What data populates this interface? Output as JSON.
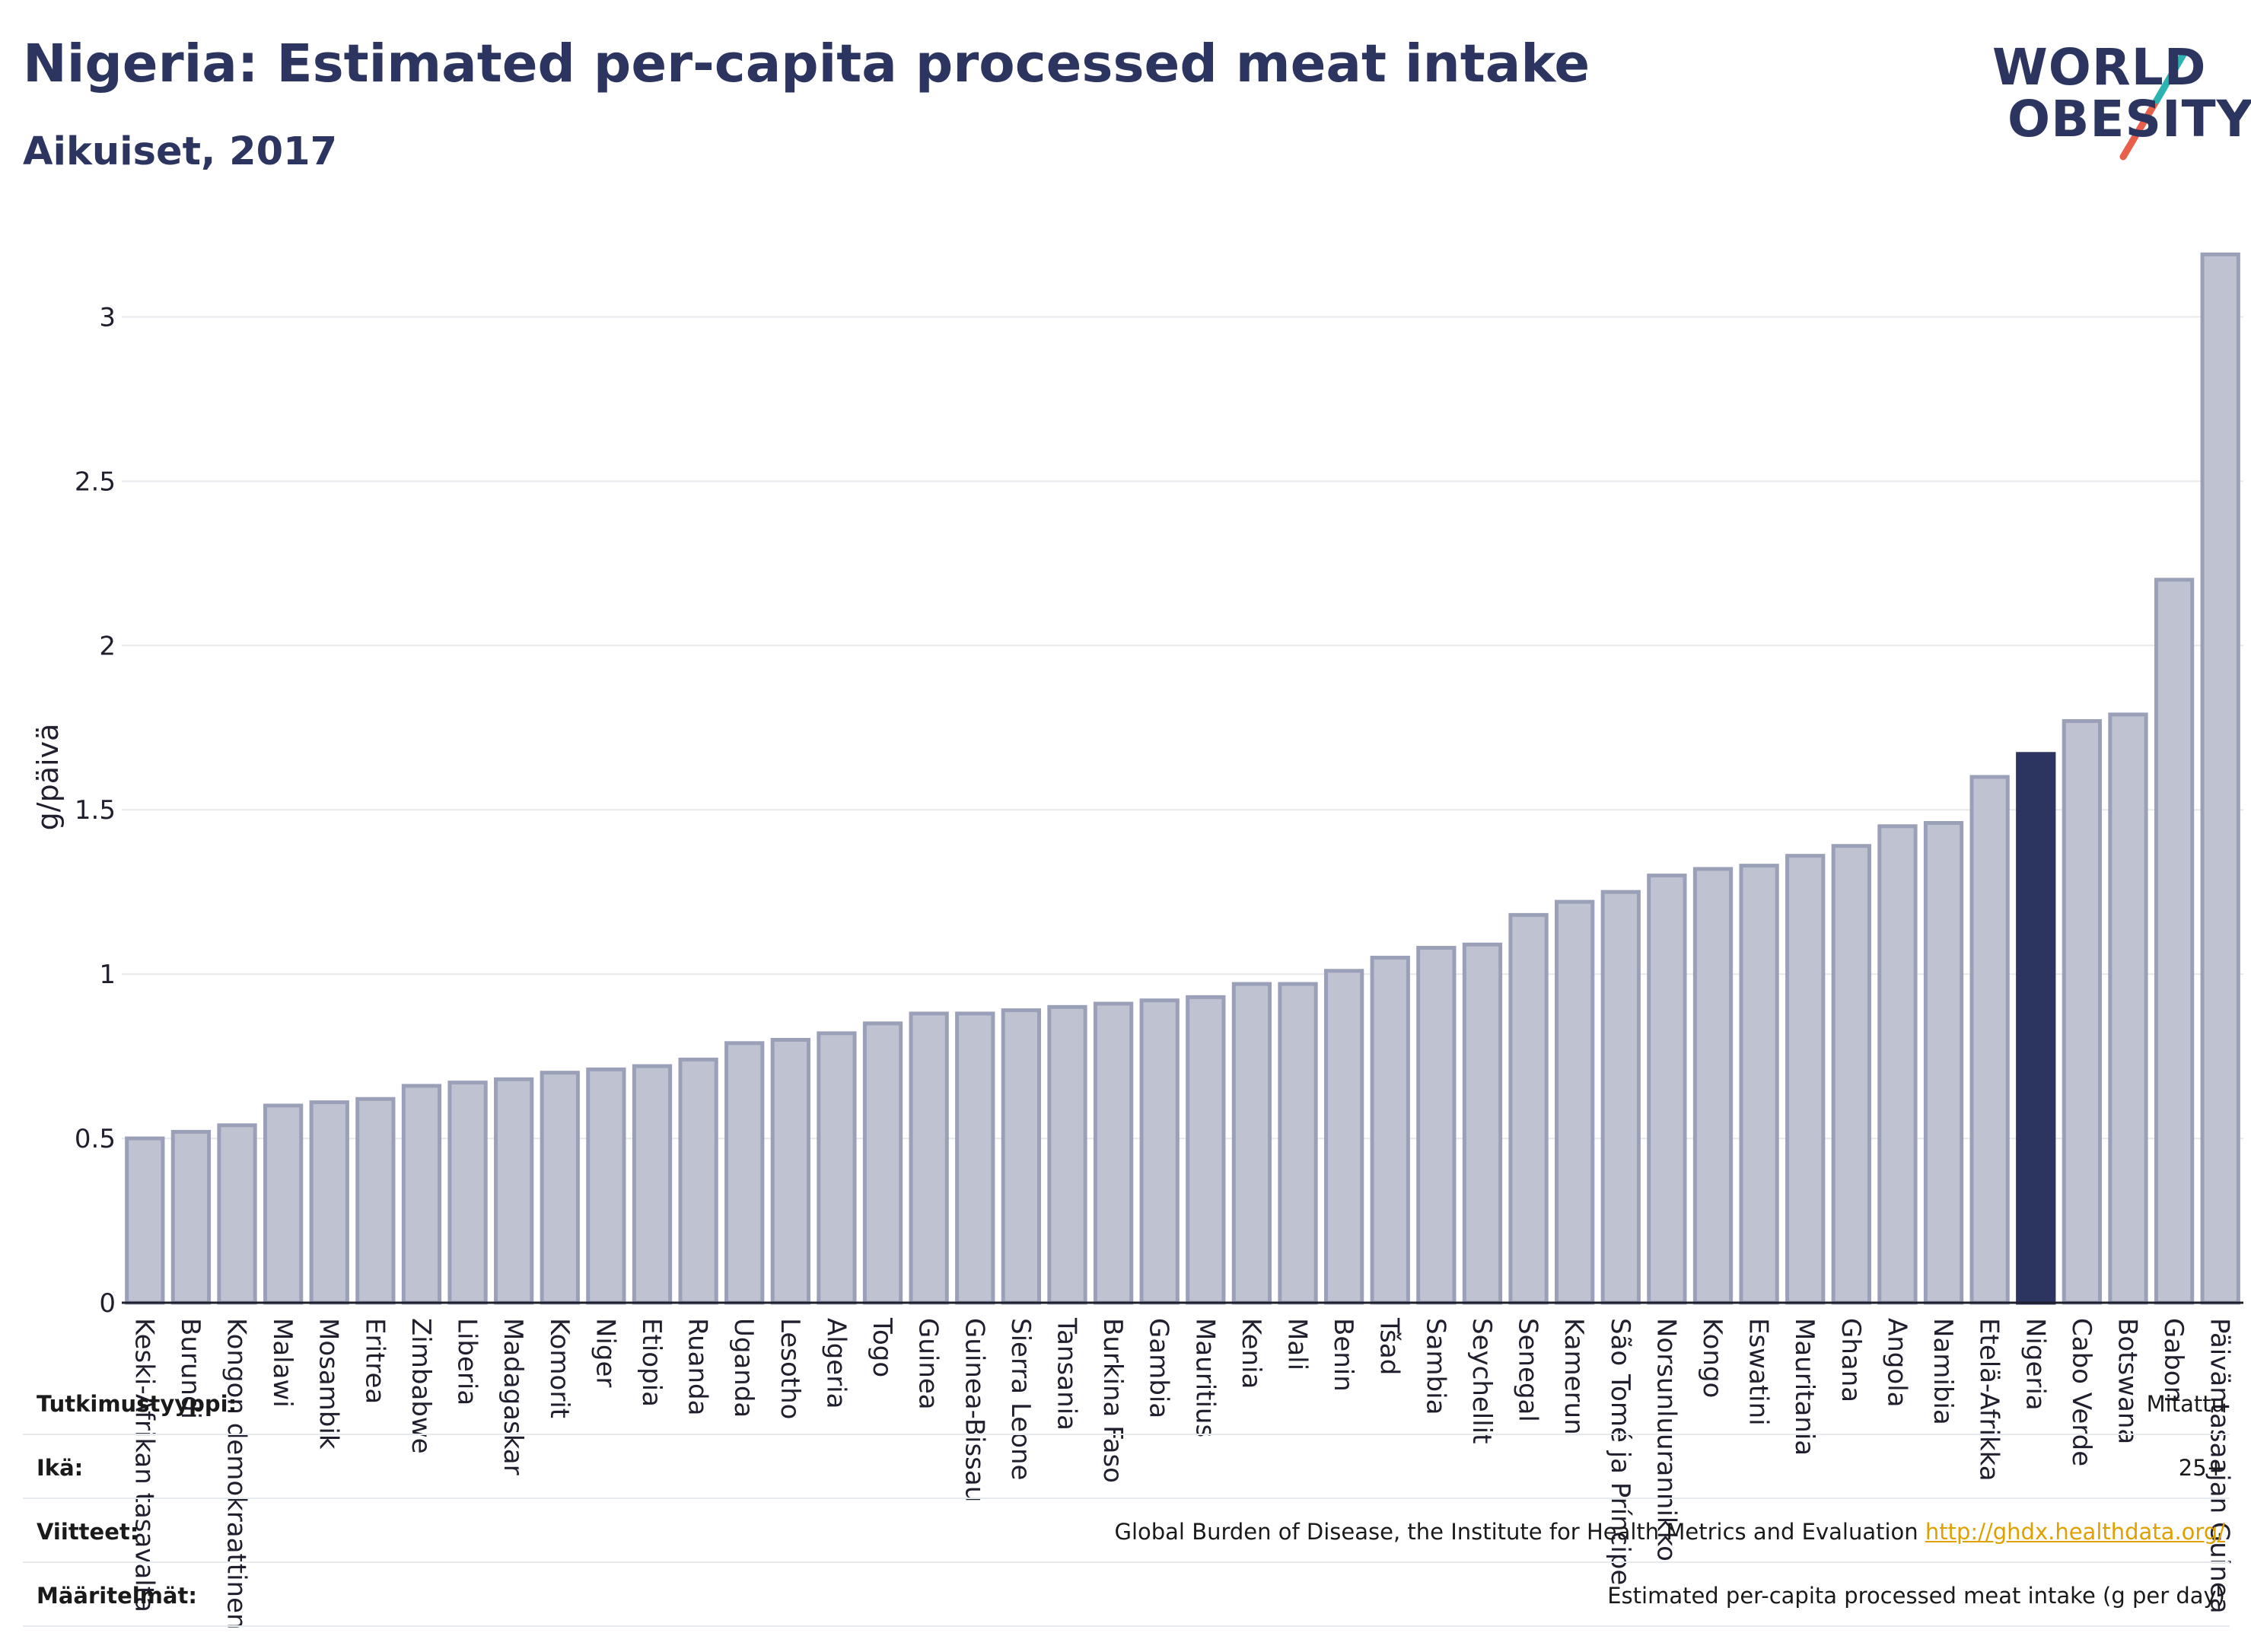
{
  "header": {
    "title": "Nigeria: Estimated per-capita processed meat intake",
    "subtitle": "Aikuiset, 2017"
  },
  "logo": {
    "line1": "WORLD",
    "line2": "OBESITY",
    "accent_colors": [
      "#2bb3b1",
      "#e8604c"
    ]
  },
  "colors": {
    "bar": "#bfc3d1",
    "bar_stroke": "#9aa0b8",
    "highlight": "#2b3560",
    "grid": "#e6e9ee"
  },
  "chart_data": {
    "type": "bar",
    "ylabel": "g/päivä",
    "ylim": [
      0,
      3.2
    ],
    "yticks": [
      0,
      0.5,
      1,
      1.5,
      2,
      2.5,
      3
    ],
    "yticklabels": [
      "0",
      "0.5",
      "1",
      "1.5",
      "2",
      "2.5",
      "3"
    ],
    "grid": true,
    "highlight": "Nigeria",
    "categories": [
      "Keski-Afrikan tasavalta",
      "Burundi",
      "Kongon demokraattinen",
      "Malawi",
      "Mosambik",
      "Eritrea",
      "Zimbabwe",
      "Liberia",
      "Madagaskar",
      "Komorit",
      "Niger",
      "Etiopia",
      "Ruanda",
      "Uganda",
      "Lesotho",
      "Algeria",
      "Togo",
      "Guinea",
      "Guinea-Bissau",
      "Sierra Leone",
      "Tansania",
      "Burkina Faso",
      "Gambia",
      "Mauritius",
      "Kenia",
      "Mali",
      "Benin",
      "Tšad",
      "Sambia",
      "Seychellit",
      "Senegal",
      "Kamerun",
      "São Tomé ja Príncipe",
      "Norsunluurannikko",
      "Kongo",
      "Eswatini",
      "Mauritania",
      "Ghana",
      "Angola",
      "Namibia",
      "Etelä-Afrikka",
      "Nigeria",
      "Cabo Verde",
      "Botswana",
      "Gabon",
      "Päiväntasaajan Guinea"
    ],
    "values": [
      0.5,
      0.52,
      0.54,
      0.6,
      0.61,
      0.62,
      0.66,
      0.67,
      0.68,
      0.7,
      0.71,
      0.72,
      0.74,
      0.79,
      0.8,
      0.82,
      0.85,
      0.88,
      0.88,
      0.89,
      0.9,
      0.91,
      0.92,
      0.93,
      0.97,
      0.97,
      1.01,
      1.05,
      1.08,
      1.09,
      1.18,
      1.22,
      1.25,
      1.3,
      1.32,
      1.33,
      1.36,
      1.39,
      1.45,
      1.46,
      1.6,
      1.67,
      1.77,
      1.79,
      2.2,
      3.19
    ]
  },
  "info": [
    {
      "key": "Tutkimustyyppi:",
      "value": "Mitattu"
    },
    {
      "key": "Ikä:",
      "value": "25+"
    },
    {
      "key": "Viitteet:",
      "value": "Global Burden of Disease, the Institute for Health Metrics and Evaluation",
      "link": "http://ghdx.healthdata.org/"
    },
    {
      "key": "Määritelmät:",
      "value": "Estimated per-capita processed meat intake (g per day)"
    }
  ]
}
